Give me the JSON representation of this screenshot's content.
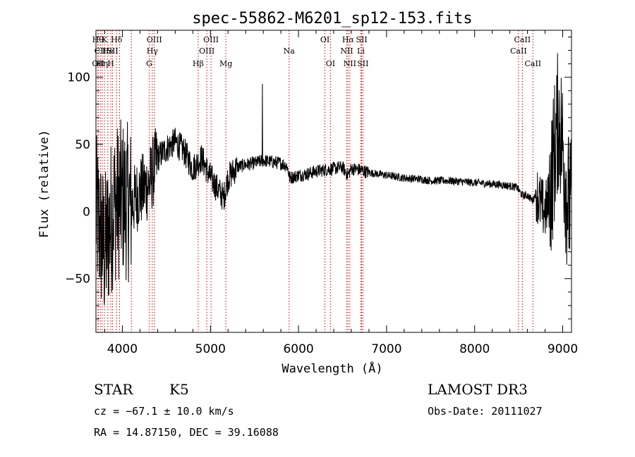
{
  "chart_data": {
    "type": "line",
    "title": "spec-55862-M6201_sp12-153.fits",
    "xlabel": "Wavelength (Å)",
    "ylabel": "Flux (relative)",
    "xlim": [
      3700,
      9100
    ],
    "ylim": [
      -90,
      135
    ],
    "x_ticks": [
      4000,
      5000,
      6000,
      7000,
      8000,
      9000
    ],
    "y_ticks": [
      -50,
      0,
      50,
      100
    ],
    "x_tick_labels": [
      "4000",
      "5000",
      "6000",
      "7000",
      "8000",
      "9000"
    ],
    "y_tick_labels": [
      "−50",
      "0",
      "50",
      "100"
    ],
    "grid": false,
    "series": [
      {
        "name": "flux",
        "anchors": [
          [
            3700,
            0
          ],
          [
            3800,
            -30
          ],
          [
            3900,
            5
          ],
          [
            4000,
            10
          ],
          [
            4100,
            5
          ],
          [
            4200,
            15
          ],
          [
            4300,
            20
          ],
          [
            4400,
            40
          ],
          [
            4500,
            47
          ],
          [
            4600,
            52
          ],
          [
            4700,
            45
          ],
          [
            4800,
            32
          ],
          [
            4900,
            40
          ],
          [
            4980,
            28
          ],
          [
            5050,
            20
          ],
          [
            5150,
            10
          ],
          [
            5200,
            25
          ],
          [
            5300,
            33
          ],
          [
            5400,
            35
          ],
          [
            5500,
            36
          ],
          [
            5600,
            38
          ],
          [
            5700,
            37
          ],
          [
            5800,
            36
          ],
          [
            5870,
            34
          ],
          [
            5900,
            25
          ],
          [
            5950,
            26
          ],
          [
            6000,
            27
          ],
          [
            6100,
            28
          ],
          [
            6200,
            30
          ],
          [
            6300,
            31
          ],
          [
            6400,
            32
          ],
          [
            6500,
            33
          ],
          [
            6560,
            27
          ],
          [
            6600,
            32
          ],
          [
            6700,
            31
          ],
          [
            6800,
            29
          ],
          [
            7000,
            27
          ],
          [
            7200,
            25
          ],
          [
            7400,
            24
          ],
          [
            7500,
            23
          ],
          [
            7700,
            23
          ],
          [
            7900,
            22
          ],
          [
            8100,
            21
          ],
          [
            8300,
            20
          ],
          [
            8400,
            19
          ],
          [
            8480,
            18
          ],
          [
            8540,
            12
          ],
          [
            8600,
            12
          ],
          [
            8660,
            8
          ],
          [
            8700,
            15
          ],
          [
            8750,
            5
          ],
          [
            8800,
            0
          ],
          [
            8850,
            10
          ],
          [
            8900,
            40
          ],
          [
            8950,
            70
          ],
          [
            9000,
            50
          ],
          [
            9050,
            10
          ],
          [
            9100,
            0
          ]
        ],
        "spike": [
          5590,
          95
        ]
      }
    ],
    "line_markers": [
      {
        "x": 3722,
        "label": "Hθ",
        "row": 0
      },
      {
        "x": 3726,
        "label": "OII",
        "row": 2
      },
      {
        "x": 3750,
        "label": "CII",
        "row": 1
      },
      {
        "x": 3771,
        "label": "Hη",
        "row": 2
      },
      {
        "x": 3797,
        "label": "K",
        "row": 0
      },
      {
        "x": 3835,
        "label": "He",
        "row": 1
      },
      {
        "x": 3869,
        "label": "H",
        "row": 2
      },
      {
        "x": 3889,
        "label": "SII",
        "row": 1
      },
      {
        "x": 3934,
        "label": "Hδ",
        "row": 0
      },
      {
        "x": 3968,
        "label": "",
        "row": 0
      },
      {
        "x": 4102,
        "label": "",
        "row": 0
      },
      {
        "x": 4304,
        "label": "G",
        "row": 2
      },
      {
        "x": 4340,
        "label": "Hγ",
        "row": 1
      },
      {
        "x": 4363,
        "label": "OIII",
        "row": 0
      },
      {
        "x": 4861,
        "label": "Hβ",
        "row": 2
      },
      {
        "x": 4959,
        "label": "OIII",
        "row": 1
      },
      {
        "x": 5007,
        "label": "OIII",
        "row": 0
      },
      {
        "x": 5175,
        "label": "Mg",
        "row": 2
      },
      {
        "x": 5893,
        "label": "Na",
        "row": 1
      },
      {
        "x": 6300,
        "label": "OI",
        "row": 0
      },
      {
        "x": 6363,
        "label": "OI",
        "row": 2
      },
      {
        "x": 6548,
        "label": "NII",
        "row": 1
      },
      {
        "x": 6563,
        "label": "Hα",
        "row": 0
      },
      {
        "x": 6583,
        "label": "NII",
        "row": 2
      },
      {
        "x": 6708,
        "label": "Li",
        "row": 1
      },
      {
        "x": 6717,
        "label": "SII",
        "row": 0
      },
      {
        "x": 6731,
        "label": "SII",
        "row": 2
      },
      {
        "x": 8498,
        "label": "CaII",
        "row": 1
      },
      {
        "x": 8542,
        "label": "CaII",
        "row": 0
      },
      {
        "x": 8662,
        "label": "CaII",
        "row": 2
      }
    ]
  },
  "footer": {
    "object_class": "STAR",
    "subclass": "K5",
    "survey": "LAMOST DR3",
    "redshift_line": "cz = −67.1 ± 10.0 km/s",
    "obs_date": "Obs-Date: 20111027",
    "coords": "RA =  14.87150, DEC =  39.16088"
  },
  "colors": {
    "line_marker": "#cc0000",
    "spectrum": "#000000"
  }
}
